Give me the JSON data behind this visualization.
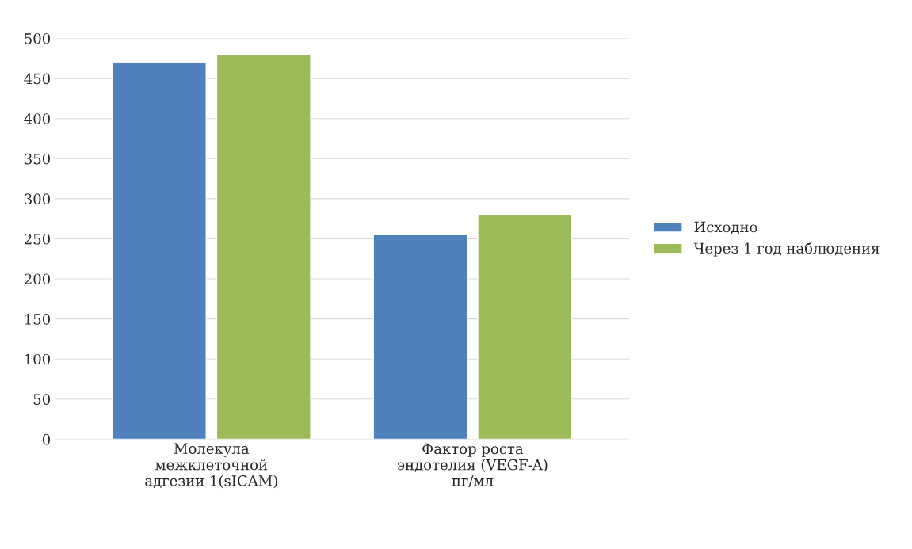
{
  "chart_data": {
    "type": "bar",
    "categories": [
      "Молекула\nмежклеточной\nадгезии 1(sICAM)",
      "Фактор роста\nэндотелия (VEGF-A)\nпг/мл"
    ],
    "series": [
      {
        "name": "Исходно",
        "color": "#4f81bd",
        "values": [
          470,
          255
        ]
      },
      {
        "name": "Через 1 год наблюдения",
        "color": "#9bbb59",
        "values": [
          480,
          280
        ]
      }
    ],
    "ylim": [
      0,
      500
    ],
    "yticks": [
      0,
      50,
      100,
      150,
      200,
      250,
      300,
      350,
      400,
      450,
      500
    ],
    "grid": "y",
    "legend": "right"
  }
}
